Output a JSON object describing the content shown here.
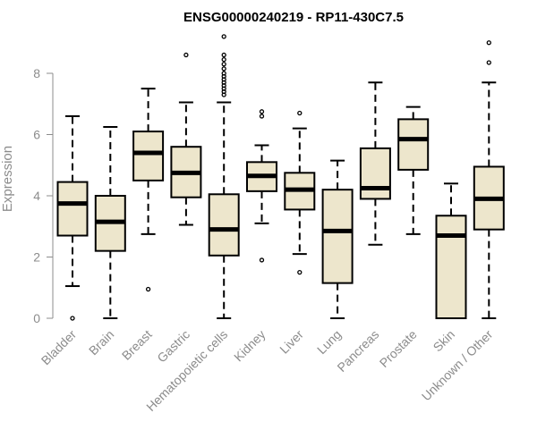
{
  "chart_data": {
    "type": "boxplot",
    "title": "ENSG00000240219 - RP11-430C7.5",
    "xlabel": "",
    "ylabel": "Expression",
    "ylim": [
      0,
      9.3
    ],
    "yticks": [
      0,
      2,
      4,
      6,
      8
    ],
    "grid": false,
    "box_fill": "#ede6cc",
    "categories": [
      "Bladder",
      "Brain",
      "Breast",
      "Gastric",
      "Hematopoietic cells",
      "Kidney",
      "Liver",
      "Lung",
      "Pancreas",
      "Prostate",
      "Skin",
      "Unknown / Other"
    ],
    "boxes": [
      {
        "whisker_low": 1.05,
        "q1": 2.7,
        "median": 3.75,
        "q3": 4.45,
        "whisker_high": 6.6,
        "outliers": [
          0.0
        ]
      },
      {
        "whisker_low": 0.0,
        "q1": 2.2,
        "median": 3.15,
        "q3": 4.0,
        "whisker_high": 6.25,
        "outliers": []
      },
      {
        "whisker_low": 2.75,
        "q1": 4.5,
        "median": 5.4,
        "q3": 6.1,
        "whisker_high": 7.5,
        "outliers": [
          0.95
        ]
      },
      {
        "whisker_low": 3.05,
        "q1": 3.95,
        "median": 4.75,
        "q3": 5.6,
        "whisker_high": 7.05,
        "outliers": [
          8.6
        ]
      },
      {
        "whisker_low": 0.0,
        "q1": 2.05,
        "median": 2.9,
        "q3": 4.05,
        "whisker_high": 7.05,
        "outliers": [
          7.3,
          7.4,
          7.5,
          7.6,
          7.7,
          7.8,
          7.9,
          8.0,
          8.15,
          8.3,
          8.45,
          8.6,
          9.2
        ]
      },
      {
        "whisker_low": 3.1,
        "q1": 4.15,
        "median": 4.65,
        "q3": 5.1,
        "whisker_high": 5.65,
        "outliers": [
          1.9,
          6.6,
          6.75
        ]
      },
      {
        "whisker_low": 2.1,
        "q1": 3.55,
        "median": 4.2,
        "q3": 4.75,
        "whisker_high": 6.2,
        "outliers": [
          1.5,
          6.7
        ]
      },
      {
        "whisker_low": 0.0,
        "q1": 1.15,
        "median": 2.85,
        "q3": 4.2,
        "whisker_high": 5.15,
        "outliers": []
      },
      {
        "whisker_low": 2.4,
        "q1": 3.9,
        "median": 4.25,
        "q3": 5.55,
        "whisker_high": 7.7,
        "outliers": []
      },
      {
        "whisker_low": 2.75,
        "q1": 4.85,
        "median": 5.85,
        "q3": 6.5,
        "whisker_high": 6.9,
        "outliers": []
      },
      {
        "whisker_low": 0.0,
        "q1": 0.0,
        "median": 2.7,
        "q3": 3.35,
        "whisker_high": 4.4,
        "outliers": []
      },
      {
        "whisker_low": 0.0,
        "q1": 2.9,
        "median": 3.9,
        "q3": 4.95,
        "whisker_high": 7.7,
        "outliers": [
          8.35,
          9.0
        ]
      }
    ]
  }
}
